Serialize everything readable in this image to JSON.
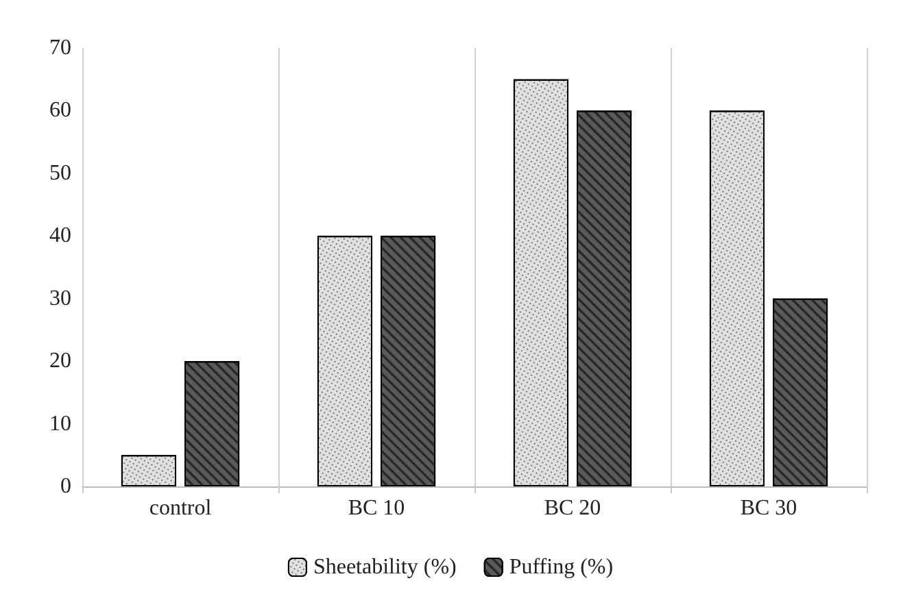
{
  "chart_data": {
    "type": "bar",
    "categories": [
      "control",
      "BC 10",
      "BC 20",
      "BC 30"
    ],
    "series": [
      {
        "name": "Sheetability (%)",
        "color": "#e0e0e0",
        "values": [
          5,
          40,
          65,
          60
        ]
      },
      {
        "name": "Puffing (%)",
        "color": "#5a5a5a",
        "values": [
          20,
          40,
          60,
          30
        ]
      }
    ],
    "ylim": [
      0,
      70
    ],
    "yticks": [
      0,
      10,
      20,
      30,
      40,
      50,
      60,
      70
    ],
    "grid": "x",
    "legend": "bottom"
  }
}
